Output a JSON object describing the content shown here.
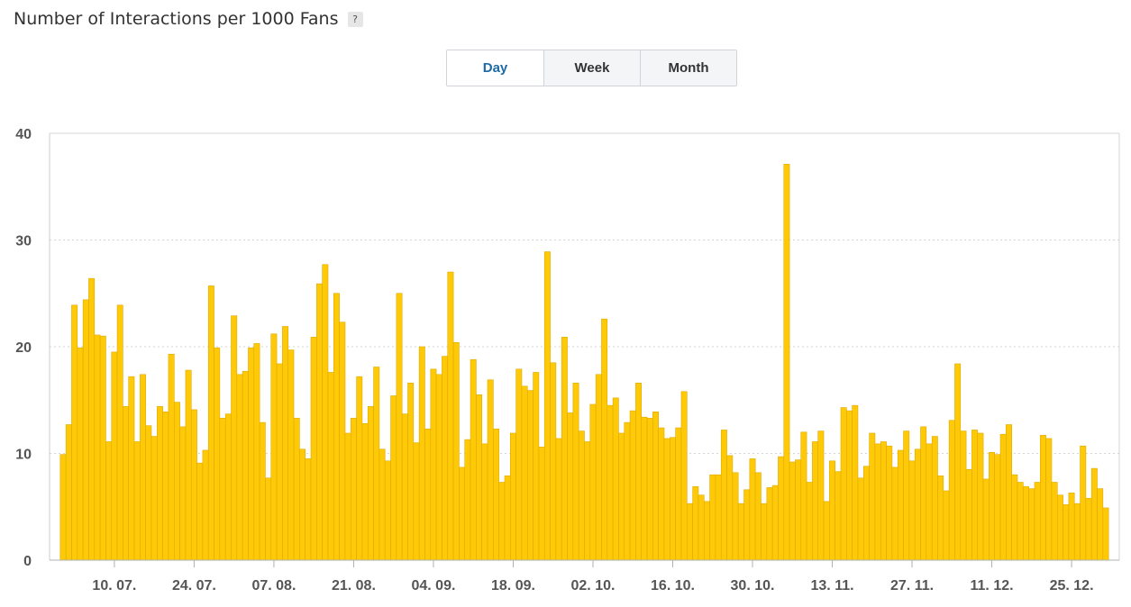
{
  "header": {
    "title": "Number of Interactions per 1000 Fans",
    "help_label": "?"
  },
  "period_toggle": {
    "options": [
      "Day",
      "Week",
      "Month"
    ],
    "selected": "Day"
  },
  "colors": {
    "bar_fill": "#FECA08",
    "bar_stroke": "#E0A800",
    "grid": "#d5d5d5",
    "active_text": "#1b6aa6"
  },
  "chart_data": {
    "type": "bar",
    "title": "Number of Interactions per 1000 Fans",
    "xlabel": "",
    "ylabel": "",
    "ylim": [
      0,
      40
    ],
    "yticks": [
      0,
      10,
      20,
      30,
      40
    ],
    "grid": true,
    "legend": "none",
    "x_start_date": "2023-07-01",
    "xtick_labels": [
      {
        "date": "2023-07-10",
        "label": "10. 07."
      },
      {
        "date": "2023-07-24",
        "label": "24. 07."
      },
      {
        "date": "2023-08-07",
        "label": "07. 08."
      },
      {
        "date": "2023-08-21",
        "label": "21. 08."
      },
      {
        "date": "2023-09-04",
        "label": "04. 09."
      },
      {
        "date": "2023-09-18",
        "label": "18. 09."
      },
      {
        "date": "2023-10-02",
        "label": "02. 10."
      },
      {
        "date": "2023-10-16",
        "label": "16. 10."
      },
      {
        "date": "2023-10-30",
        "label": "30. 10."
      },
      {
        "date": "2023-11-13",
        "label": "13. 11."
      },
      {
        "date": "2023-11-27",
        "label": "27. 11."
      },
      {
        "date": "2023-12-11",
        "label": "11. 12."
      },
      {
        "date": "2023-12-25",
        "label": "25. 12."
      }
    ],
    "values": [
      9.9,
      12.7,
      23.9,
      19.9,
      24.4,
      26.4,
      21.1,
      21.0,
      11.1,
      19.5,
      23.9,
      14.4,
      17.2,
      11.1,
      17.4,
      12.6,
      11.6,
      14.4,
      13.9,
      19.3,
      14.8,
      12.5,
      17.8,
      14.1,
      9.1,
      10.3,
      25.7,
      19.9,
      13.3,
      13.7,
      22.9,
      17.4,
      17.7,
      19.9,
      20.3,
      12.9,
      7.7,
      21.2,
      18.4,
      21.9,
      19.7,
      13.3,
      10.4,
      9.5,
      20.9,
      25.9,
      27.7,
      17.6,
      25.0,
      22.3,
      11.9,
      13.3,
      17.2,
      12.8,
      14.4,
      18.1,
      10.4,
      9.3,
      15.4,
      25.0,
      13.7,
      16.6,
      11.0,
      20.0,
      12.3,
      17.9,
      17.4,
      19.1,
      27.0,
      20.4,
      8.7,
      11.3,
      18.8,
      15.5,
      10.9,
      16.9,
      12.3,
      7.3,
      7.9,
      11.9,
      17.9,
      16.3,
      15.9,
      17.6,
      10.6,
      28.9,
      18.5,
      11.4,
      20.9,
      13.8,
      16.6,
      12.1,
      11.1,
      14.6,
      17.4,
      22.6,
      14.5,
      15.2,
      11.9,
      12.9,
      14.0,
      16.6,
      13.4,
      13.3,
      13.9,
      12.4,
      11.4,
      11.5,
      12.4,
      15.8,
      5.3,
      6.9,
      6.1,
      5.5,
      8.0,
      8.0,
      12.2,
      9.8,
      8.2,
      5.3,
      6.6,
      9.5,
      8.2,
      5.3,
      6.8,
      7.0,
      9.7,
      37.1,
      9.2,
      9.4,
      12.0,
      7.3,
      11.1,
      12.1,
      5.5,
      9.3,
      8.3,
      14.3,
      14.0,
      14.5,
      7.7,
      8.8,
      11.9,
      10.9,
      11.1,
      10.7,
      8.7,
      10.3,
      12.1,
      9.3,
      10.4,
      12.5,
      10.9,
      11.6,
      7.9,
      6.5,
      13.1,
      18.4,
      12.1,
      8.5,
      12.2,
      11.9,
      7.6,
      10.1,
      9.9,
      11.8,
      12.7,
      8.0,
      7.3,
      6.9,
      6.7,
      7.3,
      11.7,
      11.4,
      7.3,
      6.1,
      5.2,
      6.3,
      5.3,
      10.7,
      5.8,
      8.6,
      6.7,
      4.9
    ]
  }
}
